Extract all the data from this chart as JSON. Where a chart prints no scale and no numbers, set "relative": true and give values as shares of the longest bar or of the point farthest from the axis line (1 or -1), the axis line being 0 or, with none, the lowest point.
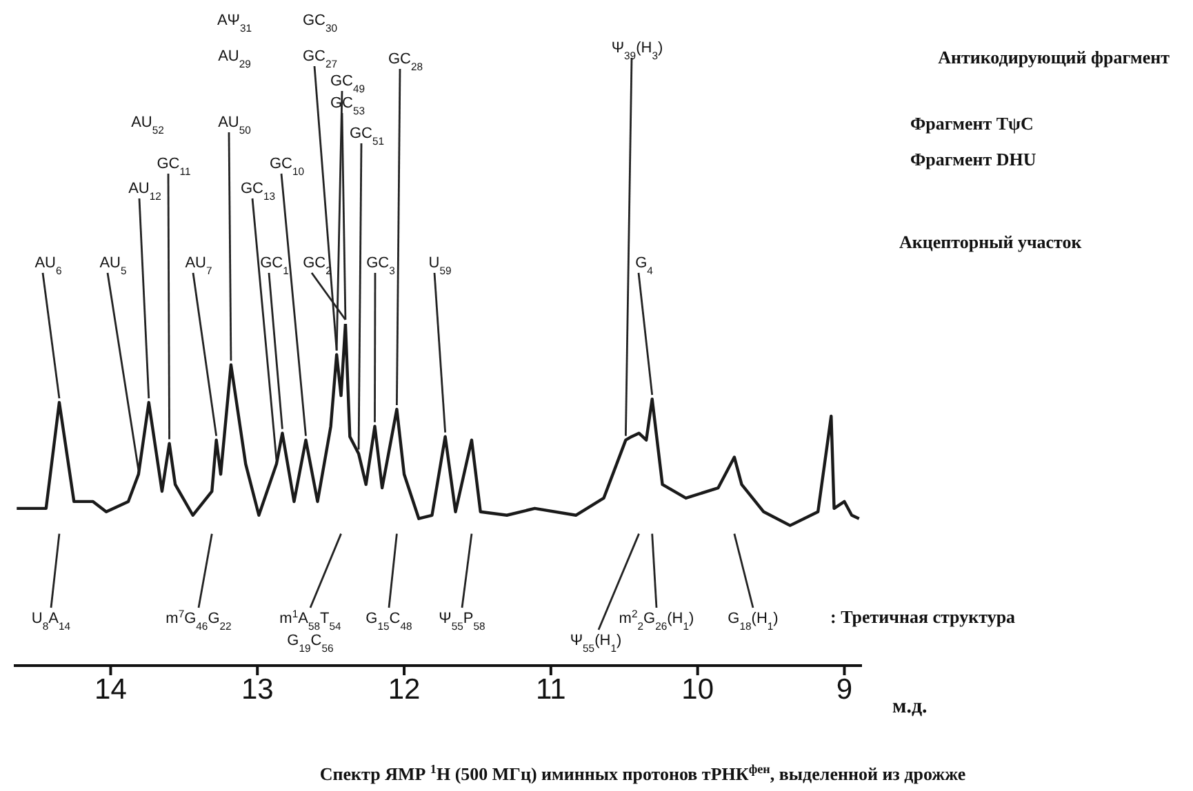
{
  "chart_data": {
    "type": "line",
    "title": "Спектр ЯМР $^{1}$H (500 МГц) иминных протонов тРНК$^{фен}$, выделенной из дрожже",
    "xlabel": "м.д.",
    "relative": true,
    "x": [
      14.64,
      14.44,
      14.35,
      14.25,
      14.12,
      14.03,
      13.88,
      13.81,
      13.74,
      13.65,
      13.6,
      13.56,
      13.44,
      13.31,
      13.28,
      13.25,
      13.18,
      13.08,
      12.99,
      12.87,
      12.83,
      12.75,
      12.67,
      12.59,
      12.5,
      12.46,
      12.43,
      12.4,
      12.37,
      12.31,
      12.26,
      12.2,
      12.15,
      12.05,
      12.0,
      11.9,
      11.81,
      11.72,
      11.65,
      11.54,
      11.48,
      11.3,
      11.11,
      10.83,
      10.64,
      10.49,
      10.45,
      10.4,
      10.35,
      10.31,
      10.24,
      10.08,
      9.86,
      9.75,
      9.7,
      9.55,
      9.37,
      9.18,
      9.09,
      9.07,
      9.0,
      8.95,
      8.9
    ],
    "series": [
      {
        "color": "#1a1a1a",
        "values": [
          0.46,
          0.46,
          0.77,
          0.48,
          0.48,
          0.45,
          0.48,
          0.56,
          0.77,
          0.51,
          0.65,
          0.53,
          0.44,
          0.51,
          0.66,
          0.56,
          0.88,
          0.59,
          0.44,
          0.59,
          0.68,
          0.48,
          0.66,
          0.48,
          0.7,
          0.91,
          0.79,
          1,
          0.67,
          0.62,
          0.53,
          0.7,
          0.52,
          0.75,
          0.56,
          0.43,
          0.44,
          0.67,
          0.45,
          0.66,
          0.45,
          0.44,
          0.46,
          0.44,
          0.49,
          0.66,
          0.67,
          0.68,
          0.66,
          0.78,
          0.53,
          0.49,
          0.52,
          0.61,
          0.53,
          0.45,
          0.41,
          0.45,
          0.73,
          0.46,
          0.48,
          0.44,
          0.43
        ]
      }
    ],
    "xlim": [
      14.66,
      8.88
    ],
    "xticks": [
      14,
      13,
      12,
      11,
      10,
      9
    ],
    "annotations": [
      "AΨ$_{31}$",
      "GC$_{30}$",
      "AU$_{29}$",
      {
        "text": "GC$_{27}$",
        "x": 12.46,
        "y": 0.91
      },
      {
        "text": "GC$_{28}$",
        "x": 12.05,
        "y": 0.75
      },
      {
        "text": "GC$_{49}$",
        "x": 12.46,
        "y": 0.91
      },
      {
        "text": "GC$_{53}$",
        "x": 12.4,
        "y": 1
      },
      "AU$_{52}$",
      {
        "text": "AU$_{50}$",
        "x": 13.18,
        "y": 0.88
      },
      {
        "text": "GC$_{51}$",
        "x": 12.31,
        "y": 0.62
      },
      {
        "text": "GC$_{11}$",
        "x": 13.6,
        "y": 0.65
      },
      {
        "text": "GC$_{10}$",
        "x": 12.67,
        "y": 0.66
      },
      {
        "text": "AU$_{12}$",
        "x": 13.74,
        "y": 0.77
      },
      {
        "text": "GC$_{13}$",
        "x": 12.87,
        "y": 0.59
      },
      {
        "text": "AU$_{6}$",
        "x": 14.35,
        "y": 0.77
      },
      {
        "text": "AU$_{5}$",
        "x": 13.81,
        "y": 0.56
      },
      {
        "text": "AU$_{7}$",
        "x": 13.28,
        "y": 0.66
      },
      {
        "text": "GC$_{1}$",
        "x": 12.83,
        "y": 0.68
      },
      {
        "text": "GC$_{2}$",
        "x": 12.4,
        "y": 1
      },
      {
        "text": "GC$_{3}$",
        "x": 12.2,
        "y": 0.7
      },
      {
        "text": "U$_{59}$",
        "x": 11.72,
        "y": 0.67
      },
      {
        "text": "Ψ$_{39}$(H$_{3}$)",
        "x": 10.49,
        "y": 0.66
      },
      {
        "text": "G$_{4}$",
        "x": 10.31,
        "y": 0.78
      },
      {
        "text": "U$_{8}$A$_{14}$",
        "x": 14.35
      },
      {
        "text": "m$^{7}$G$_{46}$G$_{22}$",
        "x": 13.31
      },
      {
        "text": "m$^{1}$A$_{58}$T$_{54}$",
        "x": 12.43
      },
      "G$_{19}$C$_{56}$",
      {
        "text": "G$_{15}$C$_{48}$",
        "x": 12.05
      },
      {
        "text": "Ψ$_{55}$P$_{58}$",
        "x": 11.54
      },
      {
        "text": "m$^{2}$$_{2}$G$_{26}$(H$_{1}$)",
        "x": 10.31
      },
      {
        "text": "Ψ$_{55}$(H$_{1}$)",
        "x": 10.4
      },
      {
        "text": "G$_{18}$(H$_{1}$)",
        "x": 9.75
      },
      "Антикодирующий фрагмент",
      "Фрагмент TψC",
      "Фрагмент DHU",
      "Акцепторный участок",
      ": Третичная структура"
    ]
  }
}
